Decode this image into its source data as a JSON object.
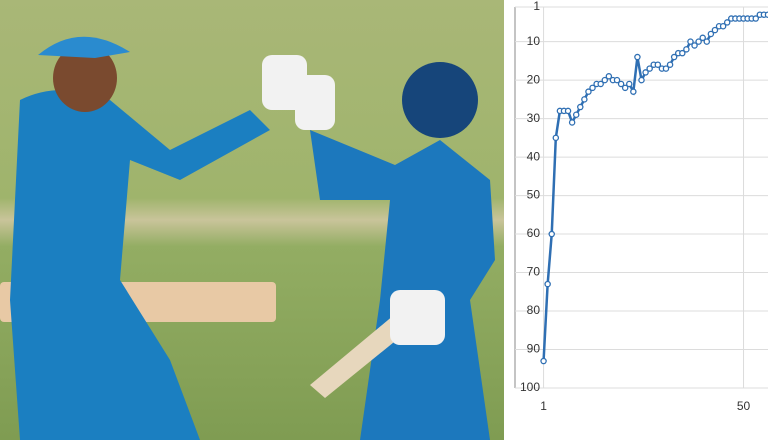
{
  "chart_data": {
    "type": "line",
    "x": [
      1,
      2,
      3,
      4,
      5,
      6,
      7,
      8,
      9,
      10,
      11,
      12,
      13,
      14,
      15,
      16,
      17,
      18,
      19,
      20,
      21,
      22,
      23,
      24,
      25,
      26,
      27,
      28,
      29,
      30,
      31,
      32,
      33,
      34,
      35,
      36,
      37,
      38,
      39,
      40,
      41,
      42,
      43,
      44,
      45,
      46,
      47,
      48,
      49,
      50,
      51,
      52,
      53,
      54,
      55,
      56
    ],
    "series": [
      {
        "color": "#2f6fb3",
        "values": [
          93,
          73,
          60,
          35,
          28,
          28,
          28,
          31,
          29,
          27,
          25,
          23,
          22,
          21,
          21,
          20,
          19,
          20,
          20,
          21,
          22,
          21,
          23,
          14,
          20,
          18,
          17,
          16,
          16,
          17,
          17,
          16,
          14,
          13,
          13,
          12,
          10,
          11,
          10,
          9,
          10,
          8,
          7,
          6,
          6,
          5,
          4,
          4,
          4,
          4,
          4,
          4,
          4,
          3,
          3,
          3
        ]
      }
    ],
    "xlim": [
      -6,
      56
    ],
    "xticks": [
      1,
      50
    ],
    "ylim": [
      1,
      100
    ],
    "yticks": [
      1,
      10,
      20,
      30,
      40,
      50,
      60,
      70,
      80,
      90,
      100
    ],
    "y_inverted": true,
    "grid": true
  }
}
